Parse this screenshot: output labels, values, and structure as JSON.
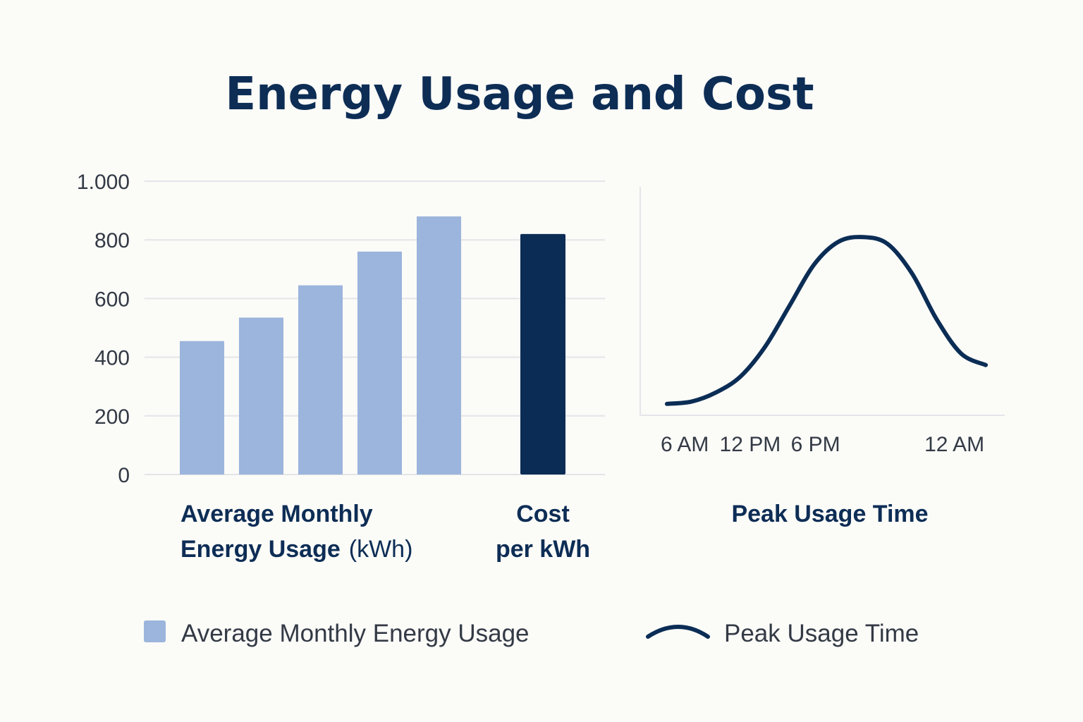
{
  "chart_data": [
    {
      "type": "bar",
      "title": "Energy Usage and Cost",
      "ylim": [
        0,
        1000
      ],
      "yticks": [
        0,
        200,
        400,
        600,
        800,
        1000
      ],
      "ytick_labels": [
        "0",
        "200",
        "400",
        "600",
        "800",
        "1.000"
      ],
      "grid": true,
      "series": [
        {
          "name": "Average Monthly Energy Usage",
          "values": [
            455,
            535,
            645,
            760,
            880
          ],
          "color": "#9bb5dc"
        },
        {
          "name": "Cost per kWh",
          "values": [
            820
          ],
          "color": "#0b2d55"
        }
      ],
      "category_labels": {
        "usage_line1": "Average Monthly",
        "usage_line2_bold": "Energy Usage",
        "usage_line2_unit": "(kWh)",
        "cost_line1": "Cost",
        "cost_line2": "per kWh"
      }
    },
    {
      "type": "line",
      "xlabel": "Peak Usage Time",
      "x_ticks": [
        "6 AM",
        "12 PM",
        "6 PM",
        "12 AM"
      ],
      "series": [
        {
          "name": "Peak Usage Time",
          "x": [
            0,
            3,
            6,
            9,
            12,
            15,
            18,
            21,
            24,
            27,
            30,
            33,
            36,
            39
          ],
          "y": [
            0.05,
            0.06,
            0.1,
            0.17,
            0.3,
            0.48,
            0.66,
            0.76,
            0.78,
            0.75,
            0.62,
            0.42,
            0.27,
            0.22
          ],
          "x_tick_positions": [
            2,
            10,
            18,
            35
          ],
          "color": "#0b2d55"
        }
      ]
    }
  ],
  "legend": [
    {
      "label": "Average Monthly Energy Usage",
      "icon": "square-swatch",
      "color": "#9bb5dc"
    },
    {
      "label": "Peak Usage Time",
      "icon": "curve-swatch",
      "color": "#0b2d55"
    }
  ]
}
